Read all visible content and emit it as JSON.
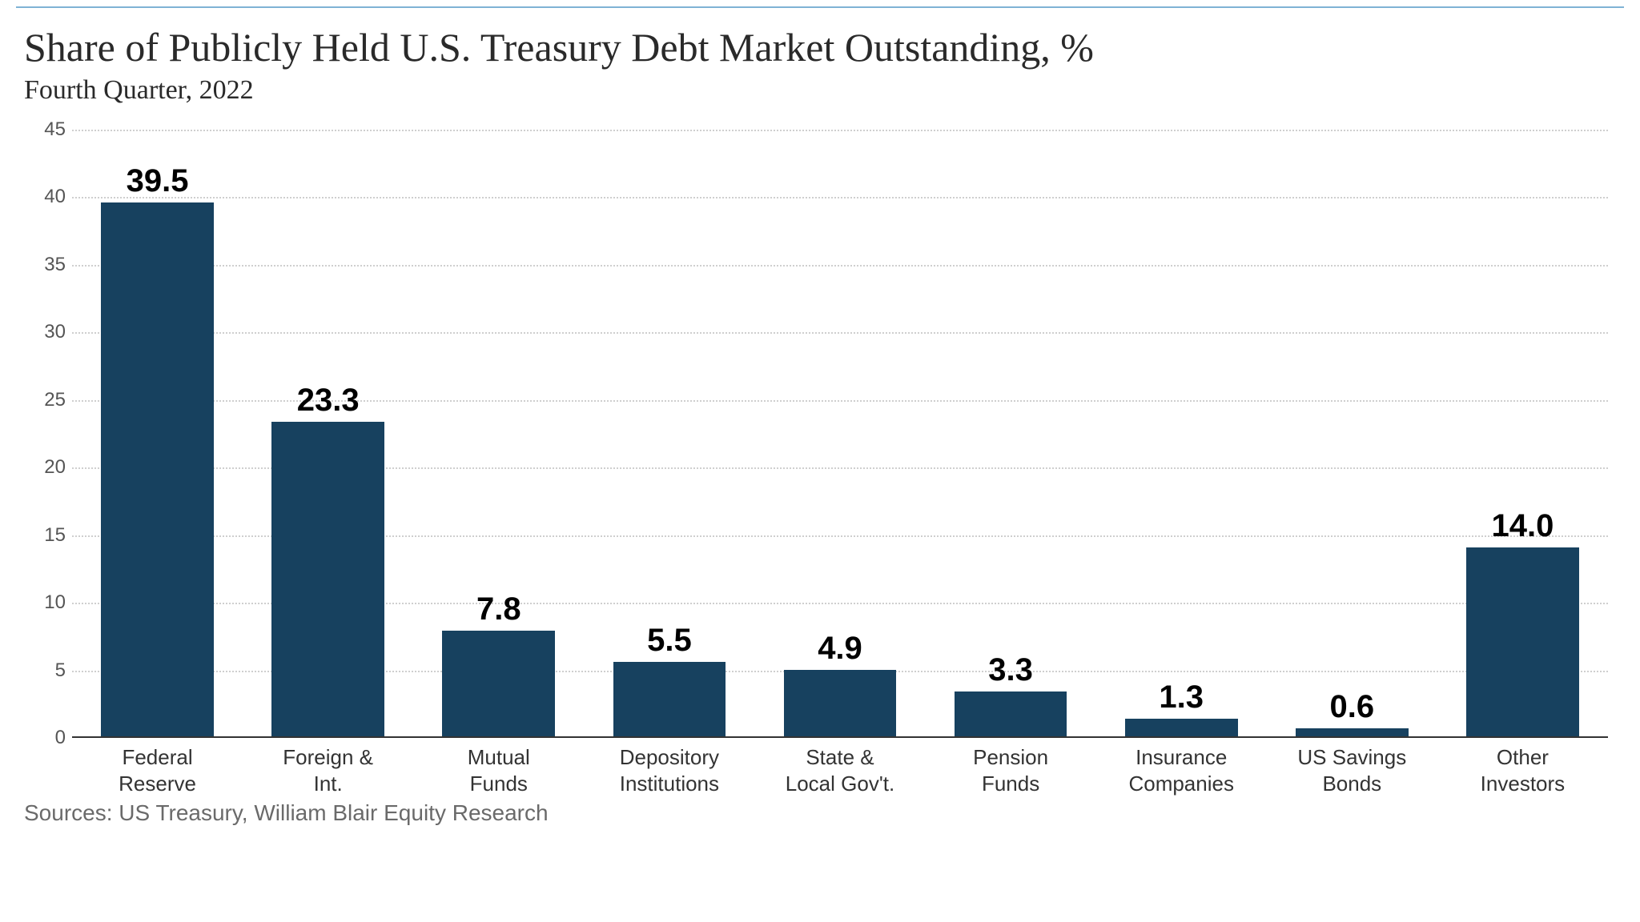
{
  "chart": {
    "type": "bar",
    "title": "Share of Publicly Held U.S. Treasury Debt Market Outstanding, %",
    "subtitle": "Fourth Quarter, 2022",
    "source": "Sources: US Treasury, William Blair Equity Research",
    "bar_color": "#17415f",
    "background_color": "#ffffff",
    "grid_color": "#cfcfcf",
    "axis_color": "#333333",
    "top_rule_color": "#7fb3d5",
    "title_fontsize": 50,
    "subtitle_fontsize": 34,
    "value_label_fontsize": 40,
    "value_label_fontweight": 700,
    "axis_label_fontsize": 26,
    "tick_fontsize": 24,
    "source_fontsize": 28,
    "ylim": [
      0,
      45
    ],
    "ytick_step": 5,
    "yticks": [
      0,
      5,
      10,
      15,
      20,
      25,
      30,
      35,
      40,
      45
    ],
    "bar_width_ratio": 0.66,
    "categories": [
      "Federal\nReserve",
      "Foreign &\nInt.",
      "Mutual\nFunds",
      "Depository\nInstitutions",
      "State &\nLocal Gov't.",
      "Pension\nFunds",
      "Insurance\nCompanies",
      "US Savings\nBonds",
      "Other\nInvestors"
    ],
    "values": [
      39.5,
      23.3,
      7.8,
      5.5,
      4.9,
      3.3,
      1.3,
      0.6,
      14.0
    ],
    "value_labels": [
      "39.5",
      "23.3",
      "7.8",
      "5.5",
      "4.9",
      "3.3",
      "1.3",
      "0.6",
      "14.0"
    ]
  }
}
